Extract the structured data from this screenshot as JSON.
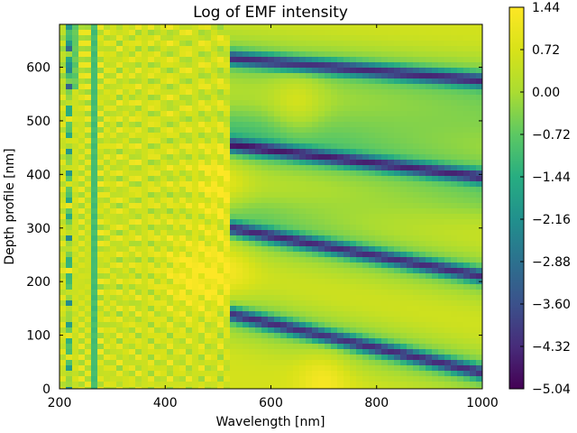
{
  "chart_data": {
    "type": "heatmap",
    "title": "Log of EMF intensity",
    "xlabel": "Wavelength [nm]",
    "ylabel": "Depth profile [nm]",
    "xlim": [
      200,
      1000
    ],
    "ylim": [
      0,
      680
    ],
    "x_ticks": [
      200,
      400,
      600,
      800,
      1000
    ],
    "y_ticks": [
      0,
      100,
      200,
      300,
      400,
      500,
      600
    ],
    "colormap": "viridis",
    "colorbar": {
      "min": -5.04,
      "max": 1.44,
      "ticks": [
        "1.44",
        "0.72",
        "0.00",
        "−0.72",
        "−1.44",
        "−2.16",
        "−2.88",
        "−3.60",
        "−4.32",
        "−5.04"
      ]
    },
    "dark_minima_bands": [
      {
        "depth_at_600": 610,
        "depth_at_1000": 575
      },
      {
        "depth_at_520": 455,
        "depth_at_1000": 395
      },
      {
        "depth_at_520": 300,
        "depth_at_1000": 210
      },
      {
        "depth_at_520": 140,
        "depth_at_1000": 30
      }
    ],
    "bright_maxima": [
      {
        "wavelength": 510,
        "depth": 380,
        "value": 1.44
      },
      {
        "wavelength": 520,
        "depth": 220,
        "value": 1.2
      },
      {
        "wavelength": 450,
        "depth": 210,
        "value": 1.2
      },
      {
        "wavelength": 700,
        "depth": 20,
        "value": 1.3
      },
      {
        "wavelength": 650,
        "depth": 530,
        "value": 0.9
      }
    ],
    "grid": false
  }
}
